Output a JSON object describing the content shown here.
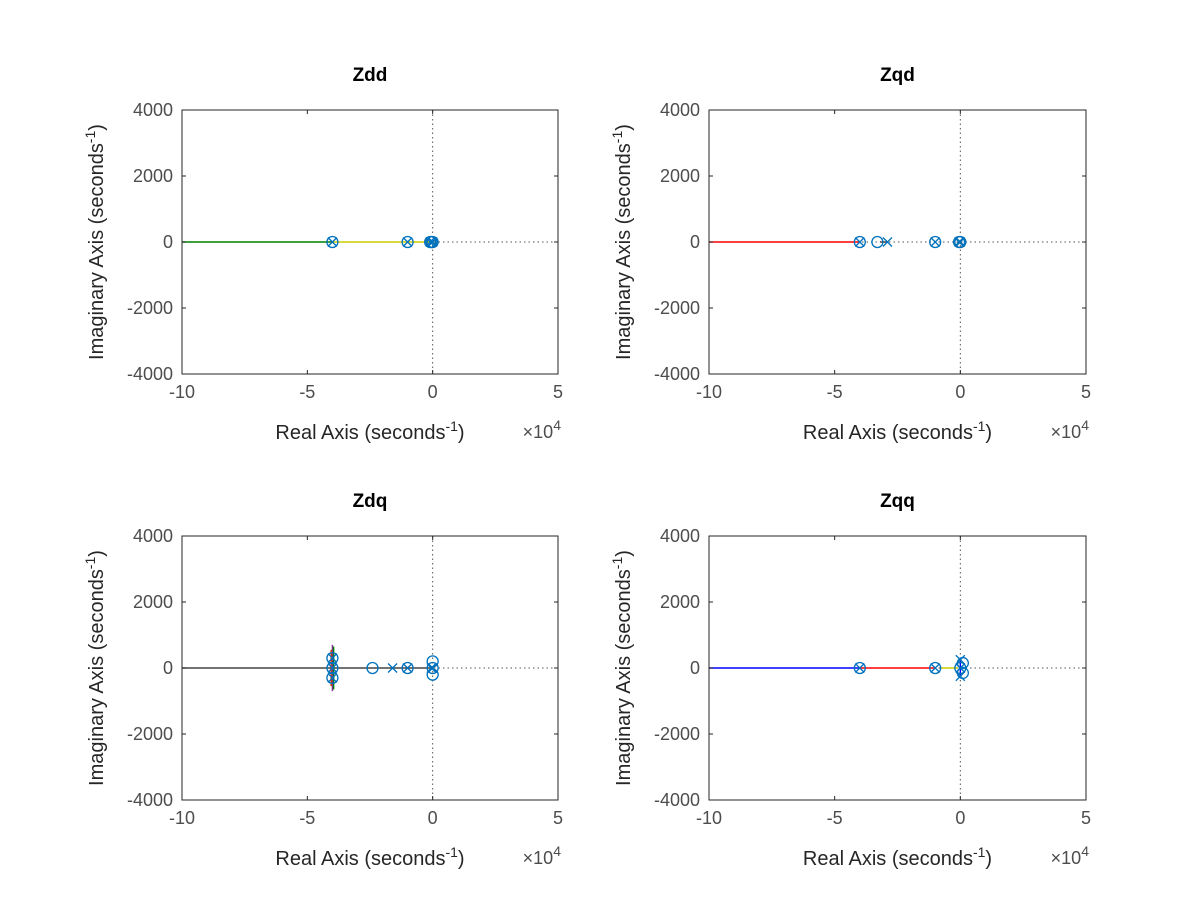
{
  "chart_data": [
    {
      "type": "scatter",
      "title": "Zdd",
      "xlabel": "Real Axis (seconds",
      "xlabel_sup": "-1",
      "xlabel_close": ")",
      "ylabel": "Imaginary Axis (seconds",
      "ylabel_sup": "-1",
      "ylabel_close": ")",
      "x_multiplier_base": "×10",
      "x_multiplier_exp": "4",
      "xlim": [
        -10,
        5
      ],
      "ylim": [
        -4000,
        4000
      ],
      "xticks": [
        "-10",
        "-5",
        "0",
        "5"
      ],
      "yticks": [
        "4000",
        "2000",
        "0",
        "-2000",
        "-4000"
      ],
      "loci": [
        {
          "color": "#008000",
          "x": [
            -10,
            -4
          ],
          "y": [
            0,
            0
          ]
        },
        {
          "color": "#cccc00",
          "x": [
            -4,
            -1.1
          ],
          "y": [
            0,
            0
          ]
        },
        {
          "color": "#cccc00",
          "x": [
            -1.1,
            -0.05
          ],
          "y": [
            0,
            0
          ]
        }
      ],
      "poles": [
        [
          -4,
          0
        ],
        [
          -1,
          0
        ],
        [
          -0.02,
          0
        ],
        [
          0,
          0
        ],
        [
          -0.1,
          0
        ]
      ],
      "zeros": [
        [
          -4,
          0
        ],
        [
          -1,
          0
        ],
        [
          -0.05,
          0
        ],
        [
          0,
          0
        ],
        [
          -0.1,
          0
        ]
      ]
    },
    {
      "type": "scatter",
      "title": "Zqd",
      "xlabel": "Real Axis (seconds",
      "xlabel_sup": "-1",
      "xlabel_close": ")",
      "ylabel": "Imaginary Axis (seconds",
      "ylabel_sup": "-1",
      "ylabel_close": ")",
      "x_multiplier_base": "×10",
      "x_multiplier_exp": "4",
      "xlim": [
        -10,
        5
      ],
      "ylim": [
        -4000,
        4000
      ],
      "xticks": [
        "-10",
        "-5",
        "0",
        "5"
      ],
      "yticks": [
        "4000",
        "2000",
        "0",
        "-2000",
        "-4000"
      ],
      "loci": [
        {
          "color": "#ff0000",
          "x": [
            -10,
            -4
          ],
          "y": [
            0,
            0
          ]
        },
        {
          "color": "#333333",
          "x": [
            -3.2,
            -2.9
          ],
          "y": [
            0,
            0
          ]
        }
      ],
      "poles": [
        [
          -4,
          0
        ],
        [
          -2.9,
          0
        ],
        [
          -1,
          0
        ],
        [
          -0.05,
          0
        ],
        [
          0,
          0
        ]
      ],
      "zeros": [
        [
          -4,
          0
        ],
        [
          -3.3,
          0
        ],
        [
          -1,
          0
        ],
        [
          -0.05,
          0
        ],
        [
          0,
          0
        ]
      ]
    },
    {
      "type": "scatter",
      "title": "Zdq",
      "xlabel": "Real Axis (seconds",
      "xlabel_sup": "-1",
      "xlabel_close": ")",
      "ylabel": "Imaginary Axis (seconds",
      "ylabel_sup": "-1",
      "ylabel_close": ")",
      "x_multiplier_base": "×10",
      "x_multiplier_exp": "4",
      "xlim": [
        -10,
        5
      ],
      "ylim": [
        -4000,
        4000
      ],
      "xticks": [
        "-10",
        "-5",
        "0",
        "5"
      ],
      "yticks": [
        "4000",
        "2000",
        "0",
        "-2000",
        "-4000"
      ],
      "loci": [
        {
          "color": "#444444",
          "x": [
            -10,
            -0.05
          ],
          "y": [
            0,
            0
          ]
        },
        {
          "color": "#7e2f8e",
          "x": [
            -4,
            -4
          ],
          "y": [
            -700,
            700
          ]
        },
        {
          "color": "#008000",
          "x": [
            -3.95,
            -3.95
          ],
          "y": [
            -650,
            650
          ]
        },
        {
          "color": "#cc3300",
          "x": [
            -4.05,
            -4.05
          ],
          "y": [
            -550,
            550
          ]
        }
      ],
      "poles": [
        [
          -4,
          300
        ],
        [
          -4,
          -300
        ],
        [
          -4,
          0
        ],
        [
          -1.6,
          0
        ],
        [
          -1,
          0
        ],
        [
          -0.05,
          0
        ],
        [
          0,
          0
        ]
      ],
      "zeros": [
        [
          -4,
          300
        ],
        [
          -4,
          -300
        ],
        [
          -4,
          0
        ],
        [
          -2.4,
          0
        ],
        [
          -1,
          0
        ],
        [
          0,
          200
        ],
        [
          0,
          -200
        ],
        [
          0,
          0
        ]
      ]
    },
    {
      "type": "scatter",
      "title": "Zqq",
      "xlabel": "Real Axis (seconds",
      "xlabel_sup": "-1",
      "xlabel_close": ")",
      "ylabel": "Imaginary Axis (seconds",
      "ylabel_sup": "-1",
      "ylabel_close": ")",
      "x_multiplier_base": "×10",
      "x_multiplier_exp": "4",
      "xlim": [
        -10,
        5
      ],
      "ylim": [
        -4000,
        4000
      ],
      "xticks": [
        "-10",
        "-5",
        "0",
        "5"
      ],
      "yticks": [
        "4000",
        "2000",
        "0",
        "-2000",
        "-4000"
      ],
      "loci": [
        {
          "color": "#0000ff",
          "x": [
            -10,
            -4
          ],
          "y": [
            0,
            0
          ]
        },
        {
          "color": "#ff0000",
          "x": [
            -4,
            -1
          ],
          "y": [
            0,
            0
          ]
        },
        {
          "color": "#cccc00",
          "x": [
            -0.8,
            -0.1
          ],
          "y": [
            0,
            0
          ]
        },
        {
          "color": "#0000ff",
          "x": [
            0,
            0
          ],
          "y": [
            -250,
            250
          ]
        }
      ],
      "poles": [
        [
          -4,
          0
        ],
        [
          -1,
          0
        ],
        [
          0,
          250
        ],
        [
          0,
          -250
        ],
        [
          0,
          0
        ]
      ],
      "zeros": [
        [
          -4,
          0
        ],
        [
          -1,
          0
        ],
        [
          0.1,
          150
        ],
        [
          0.1,
          -150
        ],
        [
          0,
          0
        ]
      ]
    }
  ]
}
